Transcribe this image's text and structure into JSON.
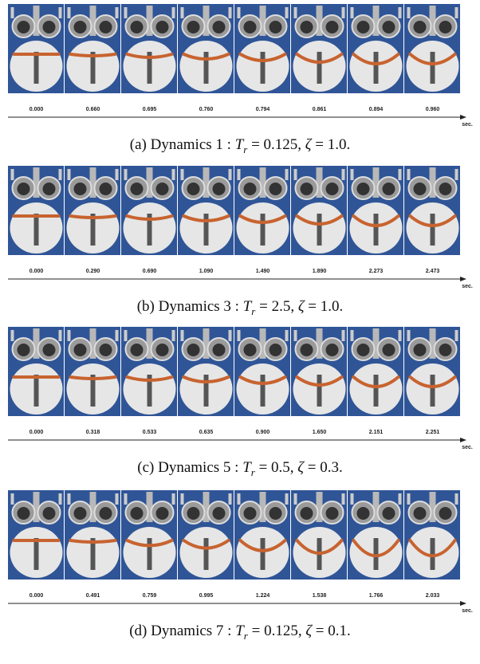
{
  "figure": {
    "panels": [
      {
        "times": [
          "0.000",
          "0.660",
          "0.695",
          "0.760",
          "0.794",
          "0.861",
          "0.894",
          "0.960"
        ],
        "unit": "sec.",
        "caption": {
          "prefix": "(a) Dynamics 1 : ",
          "t": "T",
          "sub": "r",
          "t_value": " = 0.125, ",
          "z": "ζ",
          "z_value": " = 1.0."
        }
      },
      {
        "times": [
          "0.000",
          "0.290",
          "0.690",
          "1.090",
          "1.490",
          "1.890",
          "2.273",
          "2.473"
        ],
        "unit": "sec.",
        "caption": {
          "prefix": "(b) Dynamics 3 : ",
          "t": "T",
          "sub": "r",
          "t_value": " = 2.5, ",
          "z": "ζ",
          "z_value": " = 1.0."
        }
      },
      {
        "times": [
          "0.000",
          "0.318",
          "0.533",
          "0.635",
          "0.900",
          "1.650",
          "2.151",
          "2.251"
        ],
        "unit": "sec.",
        "caption": {
          "prefix": "(c) Dynamics 5 : ",
          "t": "T",
          "sub": "r",
          "t_value": " = 0.5, ",
          "z": "ζ",
          "z_value": " = 0.3."
        }
      },
      {
        "times": [
          "0.000",
          "0.491",
          "0.759",
          "0.995",
          "1.224",
          "1.538",
          "1.766",
          "2.033"
        ],
        "unit": "sec.",
        "caption": {
          "prefix": "(d) Dynamics 7 : ",
          "t": "T",
          "sub": "r",
          "t_value": " = 0.125, ",
          "z": "ζ",
          "z_value": " = 0.1."
        }
      }
    ]
  }
}
